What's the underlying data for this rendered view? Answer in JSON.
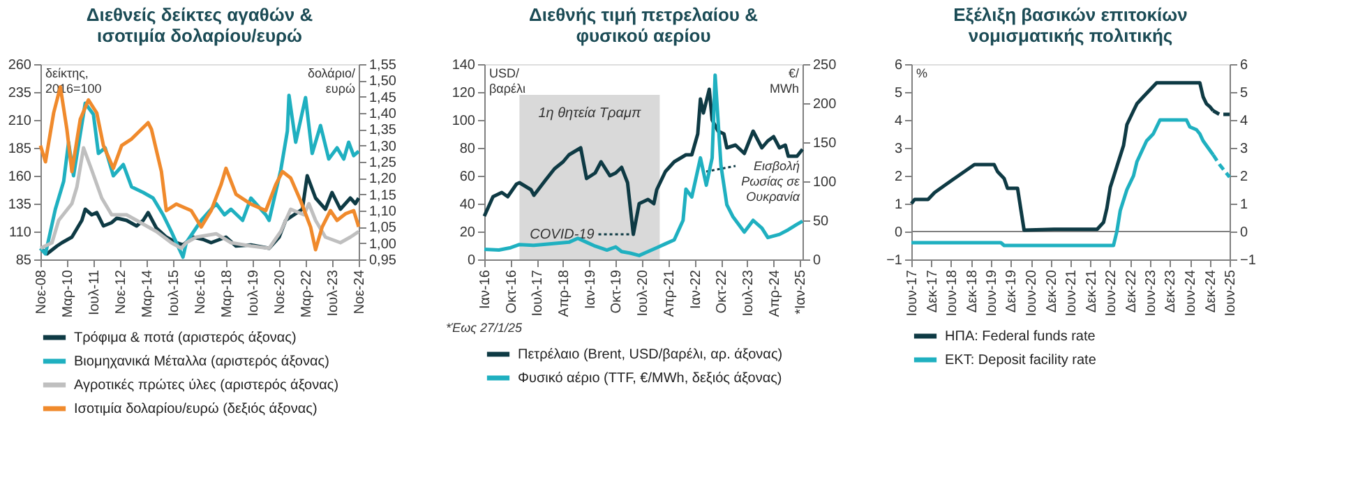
{
  "chart_data": [
    {
      "type": "line",
      "title": "Διεθνείς δείκτες αγαθών &\nισοτιμία δολαρίου/ευρώ",
      "ylabel": "δείκτης,\n2016=100",
      "y2label": "δολάριο/\nευρώ",
      "legend": "bottom",
      "xlim": [
        "2008-11",
        "2024-11"
      ],
      "xticks": [
        {
          "value": "2008-11",
          "label": "Νοε-08"
        },
        {
          "value": "2010-03",
          "label": "Μαρ-10"
        },
        {
          "value": "2011-07",
          "label": "Ιουλ-11"
        },
        {
          "value": "2012-11",
          "label": "Νοε-12"
        },
        {
          "value": "2014-03",
          "label": "Μαρ-14"
        },
        {
          "value": "2015-07",
          "label": "Ιουλ-15"
        },
        {
          "value": "2016-11",
          "label": "Νοε-16"
        },
        {
          "value": "2018-03",
          "label": "Μαρ-18"
        },
        {
          "value": "2019-07",
          "label": "Ιουλ-19"
        },
        {
          "value": "2020-11",
          "label": "Νοε-20"
        },
        {
          "value": "2022-03",
          "label": "Μαρ-22"
        },
        {
          "value": "2023-07",
          "label": "Ιουλ-23"
        },
        {
          "value": "2024-11",
          "label": "Νοε-24"
        }
      ],
      "ylim": [
        85,
        260
      ],
      "yticks": [
        85,
        110,
        135,
        160,
        185,
        210,
        235,
        260
      ],
      "y2lim": [
        0.95,
        1.55
      ],
      "y2ticks": [
        {
          "value": 0.95,
          "label": "0,95"
        },
        {
          "value": 1.0,
          "label": "1,00"
        },
        {
          "value": 1.05,
          "label": "1,05"
        },
        {
          "value": 1.1,
          "label": "1,10"
        },
        {
          "value": 1.15,
          "label": "1,15"
        },
        {
          "value": 1.2,
          "label": "1,20"
        },
        {
          "value": 1.25,
          "label": "1,25"
        },
        {
          "value": 1.3,
          "label": "1,30"
        },
        {
          "value": 1.35,
          "label": "1,35"
        },
        {
          "value": 1.4,
          "label": "1,40"
        },
        {
          "value": 1.45,
          "label": "1,45"
        },
        {
          "value": 1.5,
          "label": "1,50"
        },
        {
          "value": 1.55,
          "label": "1,55"
        }
      ],
      "series": [
        {
          "name": "Τρόφιμα & ποτά (αριστερός άξονας)",
          "color": "#0e3a44",
          "line_style": "solid",
          "x": [
            "2008-11",
            "2009-03",
            "2009-09",
            "2009-12",
            "2010-06",
            "2010-12",
            "2011-02",
            "2011-06",
            "2011-09",
            "2012-01",
            "2012-06",
            "2012-09",
            "2013-03",
            "2013-09",
            "2014-01",
            "2014-04",
            "2014-09",
            "2015-03",
            "2015-09",
            "2016-01",
            "2016-07",
            "2017-01",
            "2017-06",
            "2018-03",
            "2018-09",
            "2019-06",
            "2020-05",
            "2020-11",
            "2021-03",
            "2021-08",
            "2022-01",
            "2022-04",
            "2022-09",
            "2023-03",
            "2023-07",
            "2023-12",
            "2024-06",
            "2024-09",
            "2024-11"
          ],
          "values": [
            95,
            90,
            97,
            100,
            105,
            120,
            130,
            125,
            127,
            115,
            118,
            122,
            120,
            115,
            120,
            127,
            113,
            105,
            100,
            98,
            105,
            103,
            100,
            105,
            97,
            98,
            95,
            105,
            120,
            125,
            130,
            160,
            140,
            130,
            145,
            130,
            140,
            135,
            140
          ]
        },
        {
          "name": "Βιομηχανικά Μέταλλα (αριστερός άξονας)",
          "color": "#1fb0c0",
          "line_style": "solid",
          "x": [
            "2008-11",
            "2009-02",
            "2009-08",
            "2010-01",
            "2010-04",
            "2010-07",
            "2011-02",
            "2011-07",
            "2011-10",
            "2012-02",
            "2012-07",
            "2013-01",
            "2013-06",
            "2014-01",
            "2014-07",
            "2015-01",
            "2015-06",
            "2016-01",
            "2016-03",
            "2016-12",
            "2017-09",
            "2018-02",
            "2018-06",
            "2019-01",
            "2019-06",
            "2020-03",
            "2020-05",
            "2020-12",
            "2021-04",
            "2021-05",
            "2021-09",
            "2022-03",
            "2022-07",
            "2022-12",
            "2023-05",
            "2023-10",
            "2024-02",
            "2024-05",
            "2024-08",
            "2024-11"
          ],
          "values": [
            95,
            90,
            130,
            155,
            190,
            160,
            225,
            215,
            180,
            185,
            160,
            170,
            150,
            145,
            140,
            125,
            110,
            87,
            100,
            120,
            135,
            125,
            130,
            120,
            140,
            125,
            120,
            165,
            200,
            232,
            190,
            230,
            180,
            205,
            175,
            185,
            175,
            190,
            178,
            182
          ]
        },
        {
          "name": "Αγροτικές πρώτες ύλες (αριστερός άξονας)",
          "color": "#bfbfbf",
          "line_style": "solid",
          "x": [
            "2008-11",
            "2009-06",
            "2009-10",
            "2010-06",
            "2010-09",
            "2011-01",
            "2011-06",
            "2011-12",
            "2012-06",
            "2013-03",
            "2013-09",
            "2014-03",
            "2014-09",
            "2015-06",
            "2015-12",
            "2016-03",
            "2016-09",
            "2017-09",
            "2018-06",
            "2019-06",
            "2020-05",
            "2020-12",
            "2021-06",
            "2022-02",
            "2022-05",
            "2022-09",
            "2023-03",
            "2023-12",
            "2024-06",
            "2024-11"
          ],
          "values": [
            95,
            100,
            120,
            135,
            150,
            185,
            165,
            140,
            125,
            125,
            120,
            115,
            110,
            100,
            95,
            100,
            105,
            108,
            100,
            97,
            95,
            110,
            130,
            125,
            135,
            120,
            105,
            100,
            105,
            110
          ]
        },
        {
          "name": "Ισοτιμία δολαρίου/ευρώ (δεξιός άξονας)",
          "color": "#f08a2c",
          "line_style": "solid",
          "axis": "y2",
          "x": [
            "2008-11",
            "2009-02",
            "2009-07",
            "2009-11",
            "2010-03",
            "2010-06",
            "2010-11",
            "2011-04",
            "2011-09",
            "2012-01",
            "2012-07",
            "2012-12",
            "2013-06",
            "2014-04",
            "2014-06",
            "2014-12",
            "2015-03",
            "2015-09",
            "2016-06",
            "2016-12",
            "2017-06",
            "2017-12",
            "2018-03",
            "2018-09",
            "2019-06",
            "2020-03",
            "2020-09",
            "2021-01",
            "2021-06",
            "2021-12",
            "2022-06",
            "2022-09",
            "2023-01",
            "2023-06",
            "2023-10",
            "2024-03",
            "2024-08",
            "2024-11"
          ],
          "values": [
            1.3,
            1.25,
            1.4,
            1.48,
            1.35,
            1.22,
            1.38,
            1.44,
            1.4,
            1.3,
            1.23,
            1.3,
            1.32,
            1.37,
            1.35,
            1.22,
            1.1,
            1.12,
            1.1,
            1.05,
            1.1,
            1.18,
            1.23,
            1.15,
            1.12,
            1.1,
            1.18,
            1.22,
            1.2,
            1.13,
            1.05,
            0.98,
            1.05,
            1.1,
            1.07,
            1.09,
            1.1,
            1.05
          ]
        }
      ]
    },
    {
      "type": "line",
      "title": "Διεθνής τιμή πετρελαίου &\nφυσικού αερίου",
      "ylabel": "USD/\nβαρέλι",
      "y2label": "€/\nMWh",
      "legend": "bottom",
      "xlim": [
        "2016-01",
        "2025-01-27"
      ],
      "xticks": [
        {
          "value": "2016-01",
          "label": "Ιαν-16"
        },
        {
          "value": "2016-10",
          "label": "Οκτ-16"
        },
        {
          "value": "2017-07",
          "label": "Ιουλ-17"
        },
        {
          "value": "2018-04",
          "label": "Απρ-18"
        },
        {
          "value": "2019-01",
          "label": "Ιαν-19"
        },
        {
          "value": "2019-10",
          "label": "Οκτ-19"
        },
        {
          "value": "2020-07",
          "label": "Ιουλ-20"
        },
        {
          "value": "2021-04",
          "label": "Απρ-21"
        },
        {
          "value": "2022-01",
          "label": "Ιαν-22"
        },
        {
          "value": "2022-10",
          "label": "Οκτ-22"
        },
        {
          "value": "2023-07",
          "label": "Ιουλ-23"
        },
        {
          "value": "2024-04",
          "label": "Απρ-24"
        },
        {
          "value": "2025-01",
          "label": "*Ιαν-25"
        }
      ],
      "ylim": [
        0,
        140
      ],
      "yticks": [
        0,
        20,
        40,
        60,
        80,
        100,
        120,
        140
      ],
      "y2lim": [
        0,
        250
      ],
      "y2ticks": [
        0,
        50,
        100,
        150,
        200,
        250
      ],
      "bands": [
        {
          "axis": "x",
          "from": "2017-01",
          "to": "2021-01",
          "label": "1η θητεία Τραμπ",
          "color": "#d9d9d9"
        }
      ],
      "annotations": [
        {
          "text": "COVID-19",
          "x": "2020-04",
          "y": 18
        },
        {
          "text": "Εισβολή\nΡωσίας σε\nΟυκρανία",
          "x": "2022-04",
          "y": 65
        },
        "*Έως 27/1/25"
      ],
      "series": [
        {
          "name": "Πετρέλαιο (Brent, USD/βαρέλι, αρ. άξονας)",
          "color": "#0e3a44",
          "line_style": "solid",
          "x": [
            "2016-01",
            "2016-04",
            "2016-07",
            "2016-09",
            "2016-12",
            "2017-01",
            "2017-05",
            "2017-06",
            "2017-10",
            "2018-01",
            "2018-04",
            "2018-06",
            "2018-10",
            "2018-12",
            "2019-03",
            "2019-05",
            "2019-08",
            "2019-10",
            "2019-12",
            "2020-02",
            "2020-04",
            "2020-06",
            "2020-09",
            "2020-11",
            "2020-12",
            "2021-03",
            "2021-06",
            "2021-10",
            "2021-12",
            "2022-02",
            "2022-03",
            "2022-04",
            "2022-06",
            "2022-07",
            "2022-09",
            "2022-11",
            "2022-12",
            "2023-03",
            "2023-06",
            "2023-09",
            "2023-12",
            "2024-02",
            "2024-04",
            "2024-06",
            "2024-08",
            "2024-09",
            "2024-12",
            "2025-01-27"
          ],
          "values": [
            31,
            45,
            48,
            45,
            54,
            55,
            50,
            46,
            57,
            65,
            70,
            75,
            80,
            58,
            62,
            70,
            60,
            62,
            66,
            55,
            18,
            40,
            43,
            40,
            50,
            63,
            70,
            75,
            75,
            90,
            115,
            105,
            122,
            100,
            92,
            90,
            80,
            82,
            76,
            92,
            80,
            85,
            88,
            80,
            82,
            74,
            74,
            79
          ]
        },
        {
          "name": "Φυσικό αέριο (TTF, €/MWh, δεξιός άξονας)",
          "color": "#1fb0c0",
          "line_style": "solid",
          "axis": "y2",
          "x": [
            "2016-01",
            "2016-06",
            "2016-10",
            "2017-01",
            "2017-06",
            "2017-12",
            "2018-06",
            "2018-09",
            "2018-12",
            "2019-03",
            "2019-07",
            "2019-10",
            "2019-12",
            "2020-03",
            "2020-06",
            "2020-09",
            "2020-12",
            "2021-03",
            "2021-06",
            "2021-09",
            "2021-10",
            "2021-12",
            "2022-03",
            "2022-05",
            "2022-07",
            "2022-08",
            "2022-10",
            "2022-12",
            "2023-02",
            "2023-06",
            "2023-09",
            "2023-12",
            "2024-02",
            "2024-06",
            "2024-09",
            "2024-12",
            "2025-01-27"
          ],
          "values": [
            13,
            12,
            15,
            19,
            18,
            20,
            22,
            27,
            22,
            17,
            12,
            16,
            10,
            8,
            5,
            10,
            15,
            20,
            25,
            50,
            90,
            80,
            130,
            95,
            130,
            236,
            120,
            70,
            55,
            35,
            50,
            40,
            28,
            32,
            38,
            45,
            49
          ]
        }
      ]
    },
    {
      "type": "line",
      "title": "Εξέλιξη βασικών επιτοκίων\nνομισματικής πολιτικής",
      "ylabel": "%",
      "legend": "bottom",
      "xlim": [
        "2017-06",
        "2025-06"
      ],
      "xticks": [
        {
          "value": "2017-06",
          "label": "Ιουν-17"
        },
        {
          "value": "2017-12",
          "label": "Δεκ-17"
        },
        {
          "value": "2018-06",
          "label": "Ιουν-18"
        },
        {
          "value": "2018-12",
          "label": "Δεκ-18"
        },
        {
          "value": "2019-06",
          "label": "Ιουν-19"
        },
        {
          "value": "2019-12",
          "label": "Δεκ-19"
        },
        {
          "value": "2020-06",
          "label": "Ιουν-20"
        },
        {
          "value": "2020-12",
          "label": "Δεκ-20"
        },
        {
          "value": "2021-06",
          "label": "Ιουν-21"
        },
        {
          "value": "2021-12",
          "label": "Δεκ-21"
        },
        {
          "value": "2022-06",
          "label": "Ιουν-22"
        },
        {
          "value": "2022-12",
          "label": "Δεκ-22"
        },
        {
          "value": "2023-06",
          "label": "Ιουν-23"
        },
        {
          "value": "2023-12",
          "label": "Δεκ-23"
        },
        {
          "value": "2024-06",
          "label": "Ιουν-24"
        },
        {
          "value": "2024-12",
          "label": "Δεκ-24"
        },
        {
          "value": "2025-06",
          "label": "Ιουν-25"
        }
      ],
      "ylim": [
        -1,
        6
      ],
      "yticks": [
        -1,
        0,
        1,
        2,
        3,
        4,
        5,
        6
      ],
      "y2lim": [
        -1,
        6
      ],
      "y2ticks": [
        -1,
        0,
        1,
        2,
        3,
        4,
        5,
        6
      ],
      "ref_lines": [
        {
          "axis": "y",
          "value": 0,
          "color": "#7f7f7f"
        }
      ],
      "series": [
        {
          "name": "ΗΠΑ: Federal funds rate",
          "color": "#0e3a44",
          "line_style": "solid",
          "x": [
            "2017-06",
            "2017-07",
            "2017-11",
            "2018-01",
            "2018-04",
            "2018-07",
            "2018-10",
            "2019-01",
            "2019-07",
            "2019-08",
            "2019-10",
            "2019-11",
            "2020-02",
            "2020-04",
            "2021-01",
            "2022-02",
            "2022-04",
            "2022-05",
            "2022-06",
            "2022-08",
            "2022-10",
            "2022-11",
            "2023-01",
            "2023-02",
            "2023-04",
            "2023-06",
            "2023-08",
            "2024-09",
            "2024-10",
            "2024-11",
            "2024-12",
            "2025-01"
          ],
          "values": [
            1.0,
            1.15,
            1.15,
            1.4,
            1.65,
            1.9,
            2.15,
            2.4,
            2.4,
            2.15,
            1.9,
            1.55,
            1.55,
            0.05,
            0.08,
            0.08,
            0.33,
            0.83,
            1.58,
            2.33,
            3.08,
            3.83,
            4.33,
            4.58,
            4.83,
            5.08,
            5.33,
            5.33,
            4.83,
            4.58,
            4.48,
            4.33
          ]
        },
        {
          "name": "ΕΚΤ: Deposit facility rate",
          "color": "#1fb0c0",
          "line_style": "solid",
          "x": [
            "2017-06",
            "2019-09",
            "2019-10",
            "2022-07",
            "2022-08",
            "2022-09",
            "2022-11",
            "2023-01",
            "2023-02",
            "2023-04",
            "2023-05",
            "2023-07",
            "2023-08",
            "2023-09",
            "2024-05",
            "2024-06",
            "2024-08",
            "2024-09",
            "2024-10",
            "2025-01"
          ],
          "values": [
            -0.4,
            -0.4,
            -0.5,
            -0.5,
            0.0,
            0.75,
            1.5,
            2.0,
            2.5,
            3.0,
            3.25,
            3.5,
            3.75,
            4.0,
            4.0,
            3.75,
            3.65,
            3.5,
            3.25,
            2.75
          ]
        },
        {
          "color": "#0e3a44",
          "line_style": "dashed",
          "x": [
            "2025-01",
            "2025-03",
            "2025-06"
          ],
          "values": [
            4.33,
            4.2,
            4.2
          ]
        },
        {
          "color": "#1fb0c0",
          "line_style": "dashed",
          "x": [
            "2025-01",
            "2025-03",
            "2025-06"
          ],
          "values": [
            2.75,
            2.4,
            1.95
          ]
        }
      ]
    }
  ]
}
